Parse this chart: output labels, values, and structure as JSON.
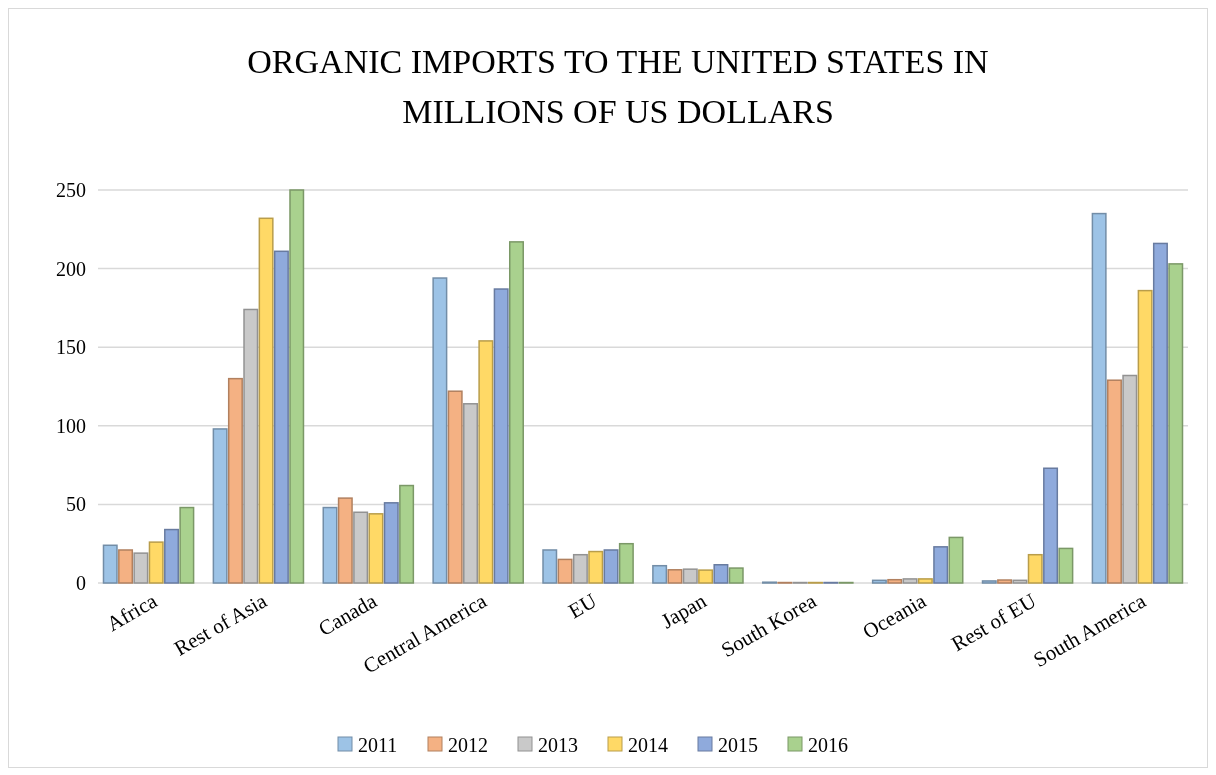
{
  "chart_data": {
    "type": "bar",
    "title": "ORGANIC IMPORTS TO THE UNITED STATES IN MILLIONS OF US DOLLARS",
    "categories": [
      "Africa",
      "Rest of Asia",
      "Canada",
      "Central America",
      "EU",
      "Japan",
      "South Korea",
      "Oceania",
      "Rest of EU",
      "South America"
    ],
    "series": [
      {
        "name": "2011",
        "color": "#9dc3e6",
        "values": [
          24,
          98,
          48,
          194,
          21,
          11,
          0.5,
          1.7,
          1.3,
          235
        ]
      },
      {
        "name": "2012",
        "color": "#f4b183",
        "values": [
          21,
          130,
          54,
          122,
          15,
          8.4,
          0.3,
          2.1,
          1.9,
          129
        ]
      },
      {
        "name": "2013",
        "color": "#c9c9c9",
        "values": [
          19,
          174,
          45,
          114,
          18,
          8.8,
          0.3,
          2.6,
          1.7,
          132
        ]
      },
      {
        "name": "2014",
        "color": "#ffd966",
        "values": [
          26,
          232,
          44,
          154,
          20,
          8.2,
          0.3,
          2.6,
          18,
          186
        ]
      },
      {
        "name": "2015",
        "color": "#8faadc",
        "values": [
          34,
          211,
          51,
          187,
          21,
          11.6,
          0.3,
          23,
          73,
          216
        ]
      },
      {
        "name": "2016",
        "color": "#a9d18e",
        "values": [
          48,
          250,
          62,
          217,
          25,
          9.5,
          0.3,
          29,
          22,
          203
        ]
      }
    ],
    "ylim": [
      0,
      250
    ],
    "yticks": [
      0,
      50,
      100,
      150,
      200,
      250
    ],
    "grid": "y",
    "legend": "bottom"
  }
}
